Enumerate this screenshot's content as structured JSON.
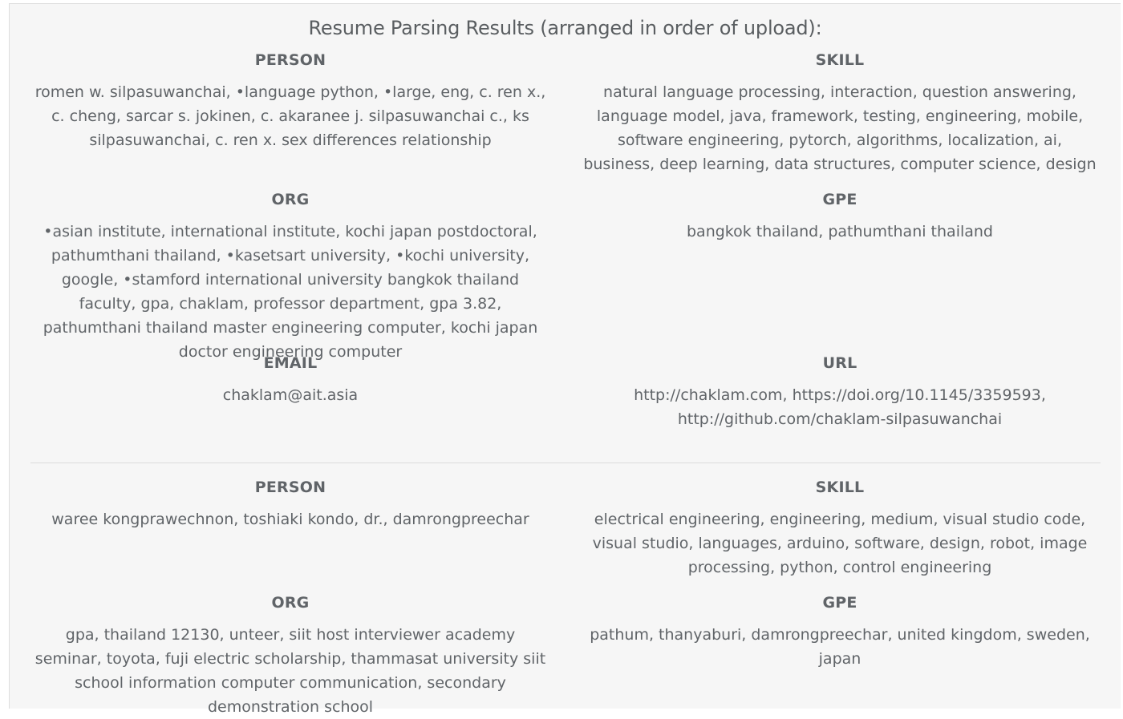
{
  "page_title": "Resume Parsing Results (arranged in order of upload):",
  "resumes": [
    {
      "person": {
        "label": "PERSON",
        "value": "romen w. silpasuwanchai, •language python, •large, eng, c. ren x., c. cheng, sarcar s. jokinen, c. akaranee j. silpasuwanchai c., ks silpasuwanchai, c. ren x. sex differences relationship"
      },
      "skill": {
        "label": "SKILL",
        "value": "natural language processing, interaction, question answering, language model, java, framework, testing, engineering, mobile, software engineering, pytorch, algorithms, localization, ai, business, deep learning, data structures, computer science, design"
      },
      "org": {
        "label": "ORG",
        "value": "•asian institute, international institute, kochi japan postdoctoral, pathumthani thailand, •kasetsart university, •kochi university, google, •stamford international university bangkok thailand faculty, gpa, chaklam, professor department, gpa 3.82, pathumthani thailand master engineering computer, kochi japan doctor engineering computer"
      },
      "gpe": {
        "label": "GPE",
        "value": "bangkok thailand, pathumthani thailand"
      },
      "email": {
        "label": "EMAIL",
        "value": "chaklam@ait.asia"
      },
      "url": {
        "label": "URL",
        "value": "http://chaklam.com, https://doi.org/10.1145/3359593, http://github.com/chaklam-silpasuwanchai"
      }
    },
    {
      "person": {
        "label": "PERSON",
        "value": "waree kongprawechnon, toshiaki kondo, dr., damrongpreechar"
      },
      "skill": {
        "label": "SKILL",
        "value": "electrical engineering, engineering, medium, visual studio code, visual studio, languages, arduino, software, design, robot, image processing, python, control engineering"
      },
      "org": {
        "label": "ORG",
        "value": "gpa, thailand 12130, unteer, siit host interviewer academy seminar, toyota, fuji electric scholarship, thammasat university siit school information computer communication, secondary demonstration school"
      },
      "gpe": {
        "label": "GPE",
        "value": "pathum, thanyaburi, damrongpreechar, united kingdom, sweden, japan"
      }
    }
  ]
}
